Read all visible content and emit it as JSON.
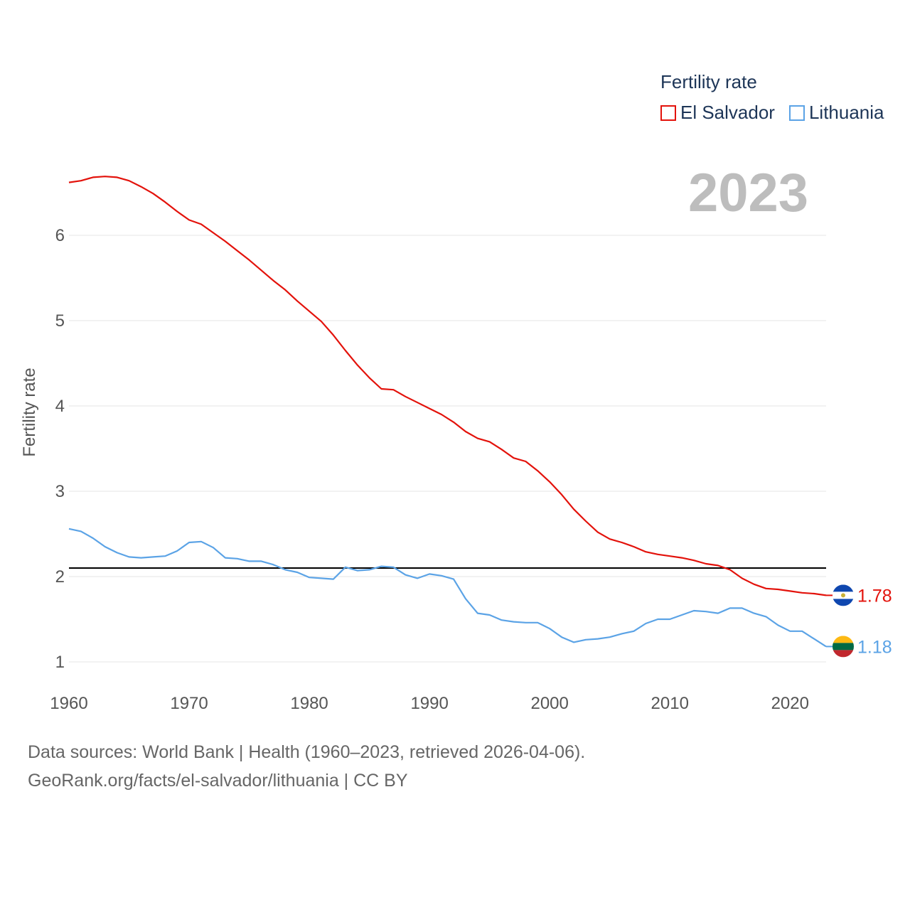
{
  "legend": {
    "title": "Fertility rate",
    "items": [
      {
        "name": "El Salvador",
        "color": "#e3120b"
      },
      {
        "name": "Lithuania",
        "color": "#5ba3e6"
      }
    ]
  },
  "year_label": "2023",
  "footer": {
    "line1": "Data sources: World Bank | Health (1960–2023, retrieved 2026-04-06).",
    "line2": "GeoRank.org/facts/el-salvador/lithuania | CC BY"
  },
  "chart_data": {
    "type": "line",
    "title": "Fertility rate",
    "xlabel": "",
    "ylabel": "Fertility rate",
    "xlim": [
      1960,
      2023
    ],
    "ylim": [
      1,
      6.9
    ],
    "xticks": [
      1960,
      1970,
      1980,
      1990,
      2000,
      2010,
      2020
    ],
    "yticks": [
      1,
      2,
      3,
      4,
      5,
      6
    ],
    "grid": true,
    "reference_line": {
      "y": 2.1
    },
    "x": [
      1960,
      1961,
      1962,
      1963,
      1964,
      1965,
      1966,
      1967,
      1968,
      1969,
      1970,
      1971,
      1972,
      1973,
      1974,
      1975,
      1976,
      1977,
      1978,
      1979,
      1980,
      1981,
      1982,
      1983,
      1984,
      1985,
      1986,
      1987,
      1988,
      1989,
      1990,
      1991,
      1992,
      1993,
      1994,
      1995,
      1996,
      1997,
      1998,
      1999,
      2000,
      2001,
      2002,
      2003,
      2004,
      2005,
      2006,
      2007,
      2008,
      2009,
      2010,
      2011,
      2012,
      2013,
      2014,
      2015,
      2016,
      2017,
      2018,
      2019,
      2020,
      2021,
      2022,
      2023
    ],
    "series": [
      {
        "name": "El Salvador",
        "color": "#e3120b",
        "end_label": "1.78",
        "values": [
          6.62,
          6.64,
          6.68,
          6.69,
          6.68,
          6.64,
          6.57,
          6.49,
          6.39,
          6.28,
          6.18,
          6.13,
          6.03,
          5.93,
          5.82,
          5.71,
          5.59,
          5.47,
          5.36,
          5.23,
          5.11,
          4.99,
          4.83,
          4.65,
          4.48,
          4.33,
          4.2,
          4.19,
          4.11,
          4.04,
          3.97,
          3.9,
          3.81,
          3.7,
          3.62,
          3.58,
          3.49,
          3.39,
          3.35,
          3.24,
          3.11,
          2.96,
          2.79,
          2.65,
          2.52,
          2.44,
          2.4,
          2.35,
          2.29,
          2.26,
          2.24,
          2.22,
          2.19,
          2.15,
          2.13,
          2.08,
          1.98,
          1.91,
          1.86,
          1.85,
          1.83,
          1.81,
          1.8,
          1.78
        ]
      },
      {
        "name": "Lithuania",
        "color": "#5ba3e6",
        "end_label": "1.18",
        "values": [
          2.56,
          2.53,
          2.45,
          2.35,
          2.28,
          2.23,
          2.22,
          2.23,
          2.24,
          2.3,
          2.4,
          2.41,
          2.34,
          2.22,
          2.21,
          2.18,
          2.18,
          2.14,
          2.08,
          2.05,
          1.99,
          1.98,
          1.97,
          2.11,
          2.07,
          2.08,
          2.12,
          2.11,
          2.02,
          1.98,
          2.03,
          2.01,
          1.97,
          1.74,
          1.57,
          1.55,
          1.49,
          1.47,
          1.46,
          1.46,
          1.39,
          1.29,
          1.23,
          1.26,
          1.27,
          1.29,
          1.33,
          1.36,
          1.45,
          1.5,
          1.5,
          1.55,
          1.6,
          1.59,
          1.57,
          1.63,
          1.63,
          1.57,
          1.53,
          1.43,
          1.36,
          1.36,
          1.27,
          1.18
        ]
      }
    ]
  }
}
